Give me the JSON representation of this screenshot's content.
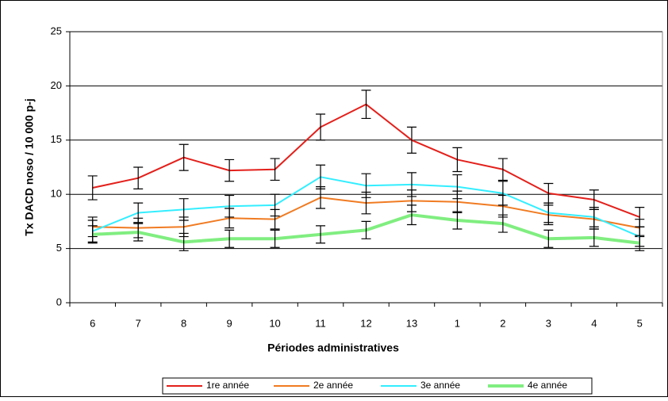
{
  "chart_data": {
    "type": "line",
    "x_label": "Périodes administratives",
    "y_label": "Tx DACD noso / 10 000 p-j",
    "categories": [
      "6",
      "7",
      "8",
      "9",
      "10",
      "11",
      "12",
      "13",
      "1",
      "2",
      "3",
      "4",
      "5"
    ],
    "ylim": [
      0,
      25
    ],
    "yticks": [
      0,
      5,
      10,
      15,
      20,
      25
    ],
    "grid": true,
    "legend": "bottom",
    "series": [
      {
        "name": "1re année",
        "color": "#e3201b",
        "values": [
          10.6,
          11.5,
          13.4,
          12.2,
          12.3,
          16.2,
          18.3,
          15.0,
          13.2,
          12.3,
          10.1,
          9.5,
          7.9
        ],
        "errors": [
          1.1,
          1.0,
          1.2,
          1.0,
          1.0,
          1.2,
          1.3,
          1.2,
          1.1,
          1.0,
          0.9,
          0.9,
          0.9
        ]
      },
      {
        "name": "2e année",
        "color": "#f07b22",
        "values": [
          7.0,
          6.9,
          7.0,
          7.8,
          7.7,
          9.7,
          9.2,
          9.4,
          9.3,
          8.9,
          8.1,
          7.7,
          6.9
        ],
        "errors": [
          0.9,
          0.9,
          0.9,
          0.9,
          0.9,
          1.0,
          1.0,
          1.0,
          1.0,
          1.0,
          0.9,
          0.9,
          0.8
        ]
      },
      {
        "name": "3e année",
        "color": "#33eeff",
        "values": [
          6.6,
          8.3,
          8.6,
          8.9,
          9.0,
          11.6,
          10.8,
          10.9,
          10.7,
          10.1,
          8.3,
          7.9,
          6.1
        ],
        "errors": [
          1.0,
          0.9,
          1.0,
          1.0,
          1.0,
          1.1,
          1.1,
          1.1,
          1.1,
          1.1,
          0.9,
          0.9,
          0.9
        ]
      },
      {
        "name": "4e année",
        "color": "#80ee80",
        "values": [
          6.3,
          6.5,
          5.6,
          5.9,
          5.9,
          6.3,
          6.7,
          8.1,
          7.6,
          7.3,
          5.9,
          6.0,
          5.5
        ],
        "errors": [
          0.8,
          0.8,
          0.8,
          0.8,
          0.8,
          0.8,
          0.8,
          0.9,
          0.8,
          0.8,
          0.8,
          0.8,
          0.7
        ]
      }
    ]
  }
}
